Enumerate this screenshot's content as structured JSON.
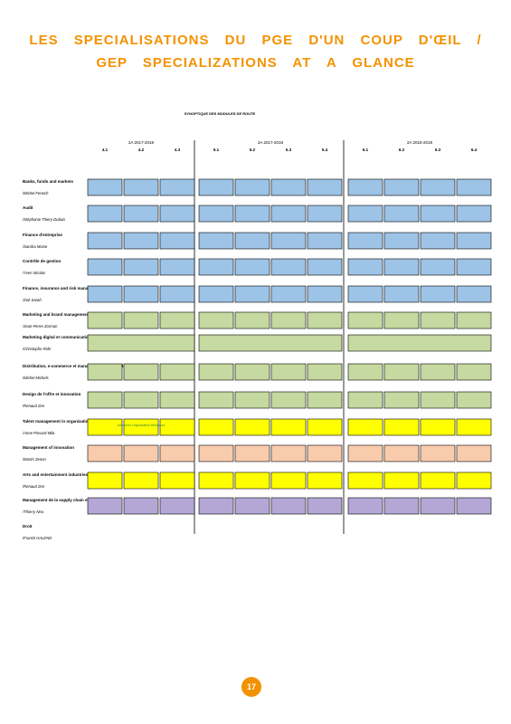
{
  "header": {
    "title_lines": [
      "LES SPECIALISATIONS DU PGE D'UN COUP D'ŒIL /",
      "GEP SPECIALIZATIONS AT A GLANCE"
    ]
  },
  "synopsis": {
    "title": "SYNOPTIQUE DES MODULES DE ROUTE",
    "periods": [
      "2A 2017-2018",
      "2A 2017-2018",
      "2A 2018-2019"
    ],
    "blocks": [
      [
        "4.1",
        "4.2",
        "4.3"
      ],
      [
        "5.1",
        "5.2",
        "5.3",
        "5.4"
      ],
      [
        "6.1",
        "6.2",
        "6.3",
        "6.4"
      ]
    ],
    "rows": [
      {
        "name": "Banks, funds and markets",
        "manager": "/Michel Fenech",
        "color": "#9dc3e6"
      },
      {
        "name": "Audit",
        "manager": "/Stéphanie Thiery-Dubuis",
        "color": "#9dc3e6"
      },
      {
        "name": "Finance d'entreprise",
        "manager": "/Sandra Moine",
        "color": "#9dc3e6"
      },
      {
        "name": "Contrôle de gestion",
        "manager": "/Yves Nicolas",
        "color": "#9dc3e6"
      },
      {
        "name": "Finance, insurance and risk management",
        "manager": "/Zoé Sarah",
        "color": "#9dc3e6"
      },
      {
        "name": "Marketing and brand management",
        "manager": "/Jean-Pierre Zorman",
        "color": "#c5d9a0"
      },
      {
        "name": "Marketing digital et communication",
        "manager": "/Christophe Rohr",
        "color": "#c5d9a0",
        "merged": true
      },
      {
        "name": "Distribution, e-commerce et management des grands comptes",
        "manager": "/Michel Michels",
        "color": "#c5d9a0"
      },
      {
        "name": "Design de l'offre et innovation",
        "manager": "/Renaud Zen",
        "color": "#c5d9a0"
      },
      {
        "name": "Talent management in organizations",
        "manager": "/Anne Pinsard-Mila",
        "color": "#ffff00",
        "note": "Advanced Organization Behaviour"
      },
      {
        "name": "Management of innovation",
        "manager": "/Martin Zenon",
        "color": "#f8cbad"
      },
      {
        "name": "Arts and entertainment industries management",
        "manager": "/Renaud Zen",
        "color": "#ffff00"
      },
      {
        "name": "Management de la supply chain et des achats",
        "manager": "/Thierry Nea",
        "color": "#b4a7d6"
      },
      {
        "name": "Droit",
        "manager": "/Franck HALEND"
      }
    ]
  },
  "footer": {
    "page": "17"
  }
}
